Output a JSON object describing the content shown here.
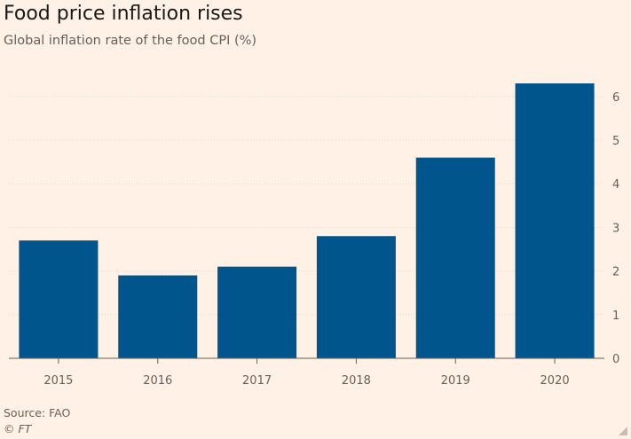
{
  "header": {
    "title": "Food price inflation rises",
    "subtitle": "Global inflation rate of the food CPI (%)"
  },
  "footer": {
    "source": "Source: FAO",
    "credit": "© FT"
  },
  "colors": {
    "background": "#fff1e5",
    "bar": "#00558c",
    "grid": "#e6d9ce",
    "axis": "#66605c"
  },
  "chart_data": {
    "type": "bar",
    "title": "Food price inflation rises",
    "subtitle": "Global inflation rate of the food CPI (%)",
    "categories": [
      "2015",
      "2016",
      "2017",
      "2018",
      "2019",
      "2020"
    ],
    "values": [
      2.7,
      1.9,
      2.1,
      2.8,
      4.6,
      6.3
    ],
    "xlabel": "",
    "ylabel": "",
    "ylim": [
      0,
      6.5
    ],
    "yticks": [
      0,
      1,
      2,
      3,
      4,
      5,
      6
    ],
    "y_axis_side": "right",
    "grid": true,
    "legend": "none"
  }
}
